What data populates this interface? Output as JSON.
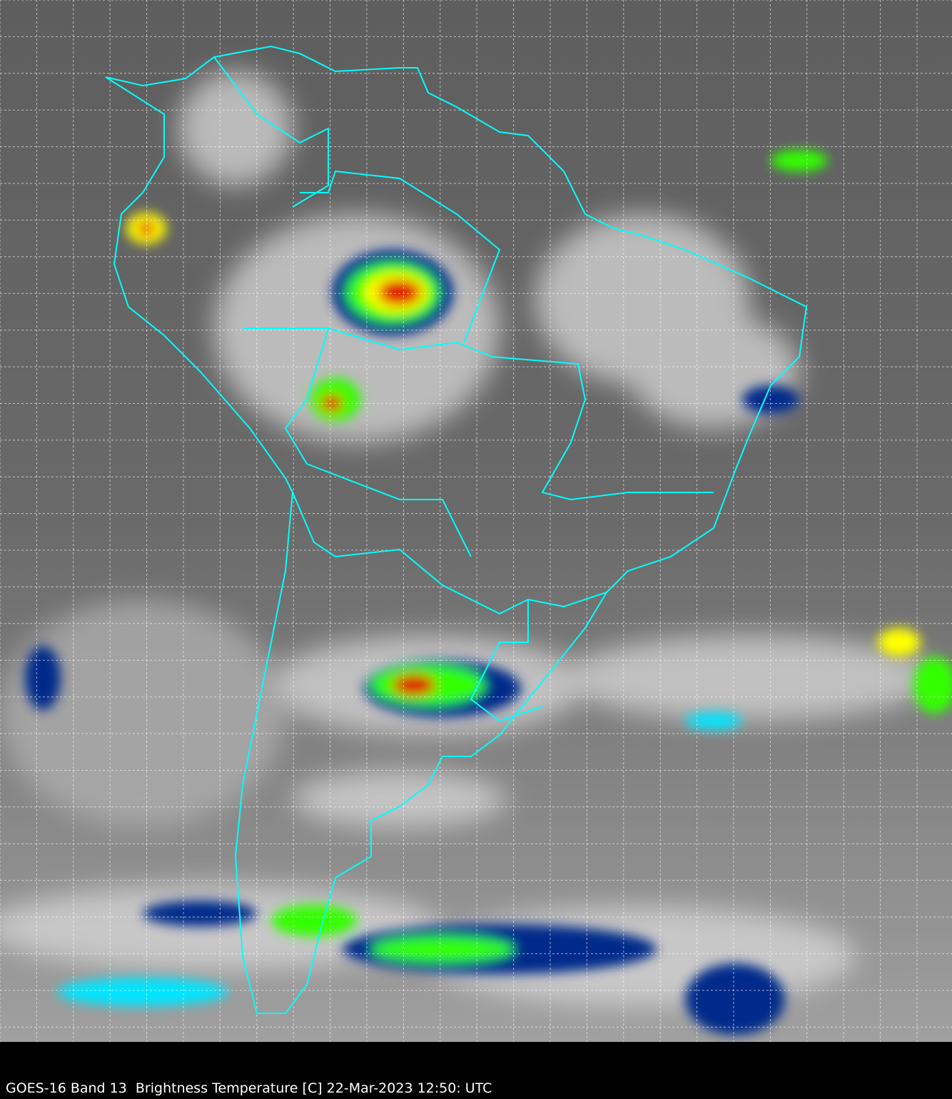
{
  "caption": "GOES-16 Band 13  Brightness Temperature [C] 22-Mar-2023 12:50: UTC",
  "colors": {
    "background": "#000000",
    "borders": "#00ffff",
    "grid": "#ffffff",
    "land_ocean_gray": "#6e6e6e",
    "cloud_white": "#e8e8e8",
    "cold_cyan": "#00e5ff",
    "cold_blue": "#002a8a",
    "cold_green": "#33ff00",
    "cold_yellow": "#ffff00",
    "cold_red": "#e00000",
    "cold_darkred": "#600000"
  },
  "map": {
    "grid": true,
    "grid_style": "dashed"
  }
}
